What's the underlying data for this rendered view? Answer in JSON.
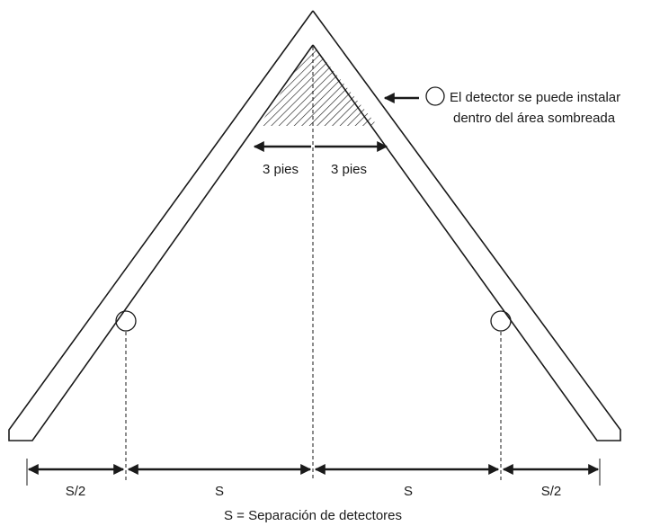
{
  "annotation": {
    "line1": "El detector se puede instalar",
    "line2": "dentro del área sombreada"
  },
  "dimensions": {
    "left_3ft": "3 pies",
    "right_3ft": "3 pies",
    "s_half_left": "S/2",
    "s_left": "S",
    "s_right": "S",
    "s_half_right": "S/2"
  },
  "legend": "S = Separación de detectores",
  "colors": {
    "ink": "#1a1a1a",
    "background": "#ffffff"
  }
}
